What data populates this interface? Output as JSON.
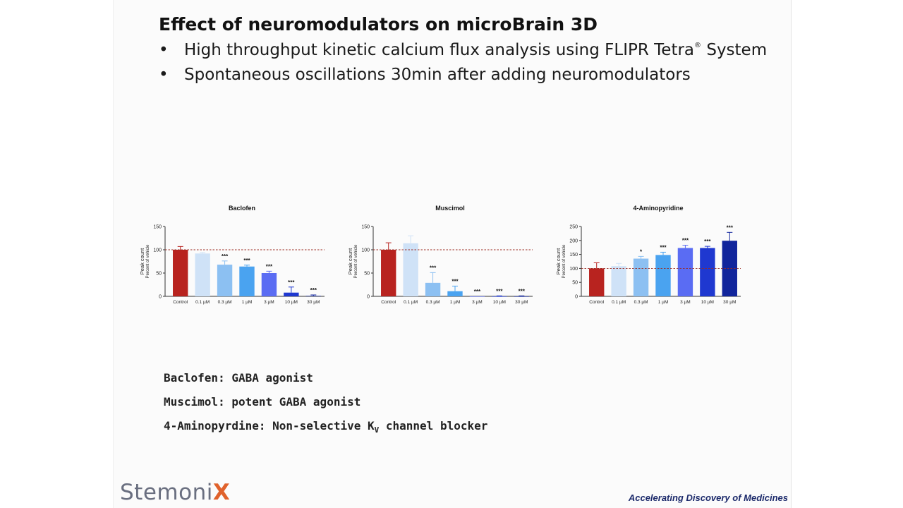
{
  "slide": {
    "title": "Effect of neuromodulators on microBrain 3D",
    "bullets": [
      {
        "marker": "•",
        "text": "High throughput kinetic calcium flux analysis using FLIPR Tetra",
        "sup": "®",
        "tail": " System"
      },
      {
        "marker": "•",
        "text": "Spontaneous oscillations 30min after adding neuromodulators",
        "sup": "",
        "tail": ""
      }
    ],
    "notes": [
      {
        "text": "Baclofen: GABA agonist",
        "sub": "",
        "tail": ""
      },
      {
        "text": "Muscimol: potent GABA agonist",
        "sub": "",
        "tail": ""
      },
      {
        "text": "4-Aminopyrdine: Non-selective K",
        "sub": "V",
        "tail": " channel blocker"
      }
    ],
    "logo": {
      "main": "Stemoni",
      "accent": "X"
    },
    "tagline": "Accelerating Discovery of Medicines"
  },
  "colors": {
    "control": "#b8231f",
    "series": [
      "#cfe2f7",
      "#8cc0f2",
      "#4aa3f0",
      "#5a6cf3",
      "#1f38d0",
      "#11259c"
    ],
    "reference_line": "#9b2b22",
    "axis": "#333333"
  },
  "chart_data": [
    {
      "type": "bar",
      "title": "Baclofen",
      "ylabel": "Peak count",
      "ylabel2": "Percent of vehicle",
      "categories": [
        "Control",
        "0.1 µM",
        "0.3 µM",
        "1 µM",
        "3 µM",
        "10 µM",
        "30 µM"
      ],
      "values": [
        100,
        92,
        68,
        64,
        50,
        8,
        1
      ],
      "errors": [
        7,
        2,
        8,
        3,
        4,
        12,
        2
      ],
      "annotations": [
        "",
        "",
        "***",
        "***",
        "***",
        "***",
        "***"
      ],
      "ylim": [
        0,
        150
      ],
      "yticks": [
        0,
        50,
        100,
        150
      ],
      "reference_line": 100
    },
    {
      "type": "bar",
      "title": "Muscimol",
      "ylabel": "Peak count",
      "ylabel2": "Percent of vehicle",
      "categories": [
        "Control",
        "0.1 µM",
        "0.3 µM",
        "1 µM",
        "3 µM",
        "10 µM",
        "30 µM"
      ],
      "values": [
        100,
        114,
        29,
        11,
        0,
        0,
        0
      ],
      "errors": [
        15,
        16,
        22,
        11,
        0,
        1,
        1
      ],
      "annotations": [
        "",
        "",
        "***",
        "***",
        "***",
        "***",
        "***"
      ],
      "ylim": [
        0,
        150
      ],
      "yticks": [
        0,
        50,
        100,
        150
      ],
      "reference_line": 100
    },
    {
      "type": "bar",
      "title": "4-Aminopyridine",
      "ylabel": "Peak count",
      "ylabel2": "Percent of vehicle",
      "categories": [
        "Control",
        "0.1 µM",
        "0.3 µM",
        "1 µM",
        "3 µM",
        "10 µM",
        "30 µM"
      ],
      "values": [
        100,
        108,
        135,
        148,
        173,
        173,
        199
      ],
      "errors": [
        20,
        10,
        8,
        10,
        10,
        6,
        30
      ],
      "annotations": [
        "",
        "",
        "*",
        "***",
        "***",
        "***",
        "***"
      ],
      "ylim": [
        0,
        250
      ],
      "yticks": [
        0,
        50,
        100,
        150,
        200,
        250
      ],
      "reference_line": 100
    }
  ]
}
